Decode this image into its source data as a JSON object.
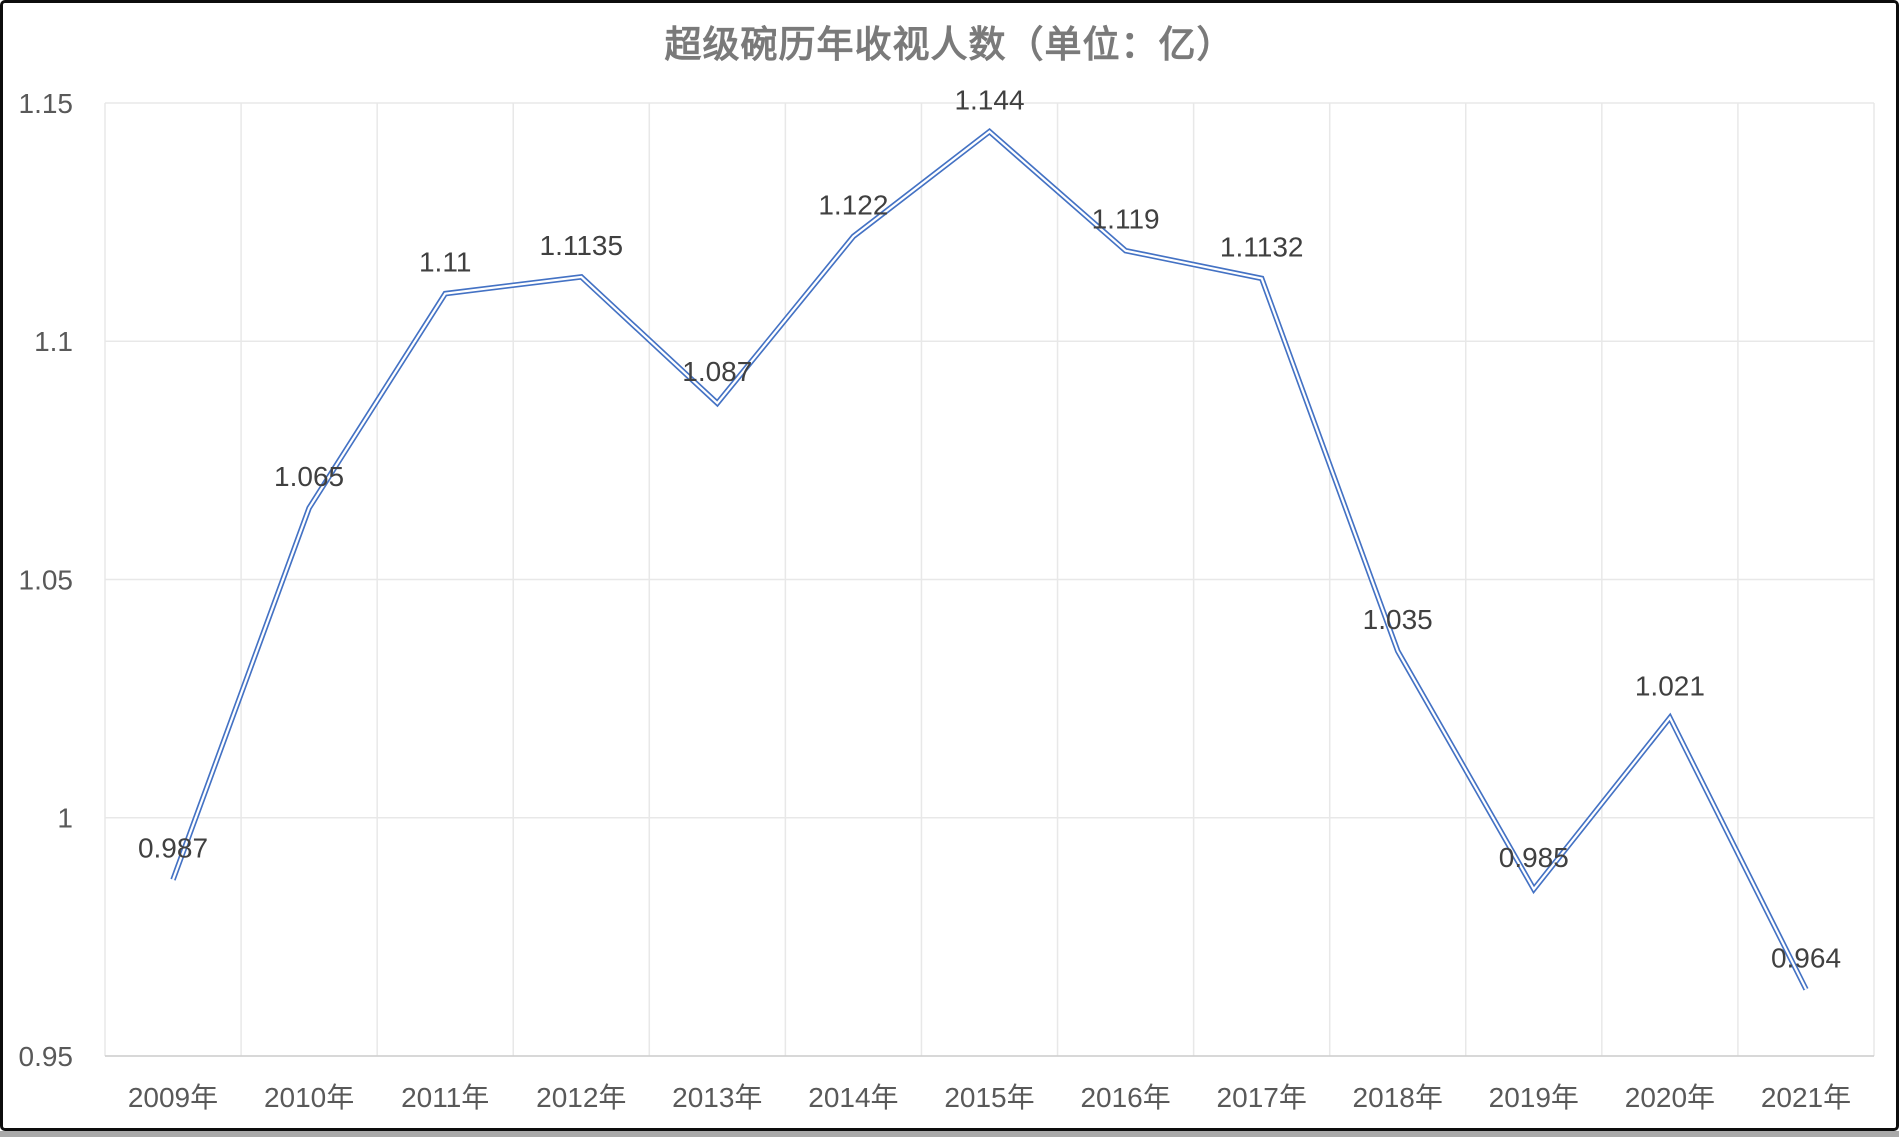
{
  "window": {
    "border_color": "#0d0d0d",
    "background": "#ffffff",
    "bottom_strip_color": "#a9a9a9"
  },
  "chart_data": {
    "type": "line",
    "title": "超级碗历年收视人数（单位：亿）",
    "categories": [
      "2009年",
      "2010年",
      "2011年",
      "2012年",
      "2013年",
      "2014年",
      "2015年",
      "2016年",
      "2017年",
      "2018年",
      "2019年",
      "2020年",
      "2021年"
    ],
    "values": [
      0.987,
      1.065,
      1.11,
      1.1135,
      1.087,
      1.122,
      1.144,
      1.119,
      1.1132,
      1.035,
      0.985,
      1.021,
      0.964
    ],
    "data_labels": [
      "0.987",
      "1.065",
      "1.11",
      "1.1135",
      "1.087",
      "1.122",
      "1.144",
      "1.119",
      "1.1132",
      "1.035",
      "0.985",
      "1.021",
      "0.964"
    ],
    "xlabel": "",
    "ylabel": "",
    "ylim": [
      0.95,
      1.15
    ],
    "y_ticks": {
      "values": [
        1.15,
        1.1,
        1.05,
        1.0,
        0.95
      ],
      "labels": [
        "1.15",
        "1.1",
        "1.05",
        "1",
        "0.95"
      ]
    },
    "grid": true,
    "legend": "none",
    "line_color": "#4472C4",
    "line_inner_color": "#ffffff",
    "title_color": "#7a7a7a",
    "tick_label_color": "#595959",
    "data_label_color": "#404040",
    "gridline_color": "#e8e8e8",
    "axis_line_color": "#d2d2d2"
  }
}
